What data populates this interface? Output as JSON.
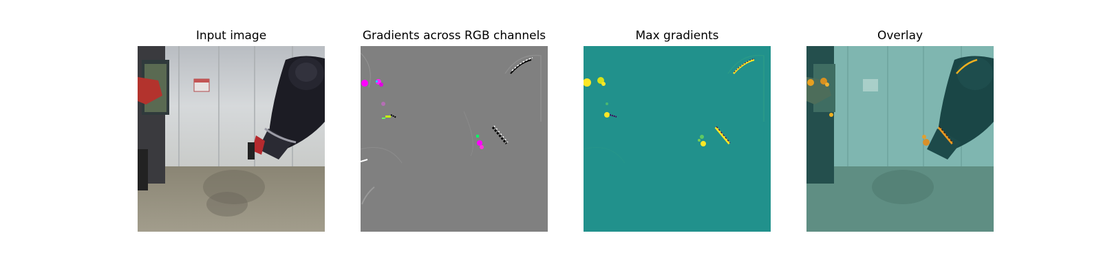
{
  "panels": [
    {
      "title": "Input image",
      "icon": "robot-arm-photo"
    },
    {
      "title": "Gradients across RGB channels",
      "icon": "rgb-gradient-map"
    },
    {
      "title": "Max gradients",
      "icon": "max-gradient-heatmap"
    },
    {
      "title": "Overlay",
      "icon": "gradient-overlay-photo"
    }
  ],
  "colors": {
    "gradient_background": "#808080",
    "heatmap_background": "#21918c",
    "heatmap_high": "#fde725",
    "heatmap_mid": "#5ec962",
    "saliency_magenta": "#ff00ff",
    "floor": "#8f8a78",
    "wall": "#cfd3d6"
  }
}
